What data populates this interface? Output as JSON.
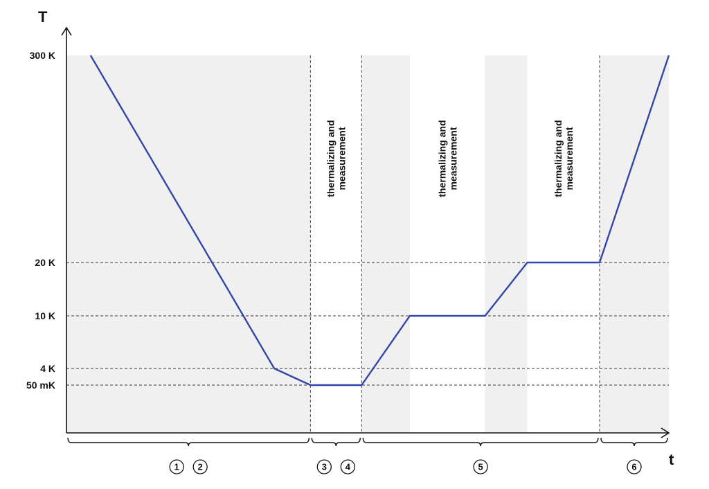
{
  "chart_data": {
    "type": "line",
    "title": "",
    "xlabel": "t",
    "ylabel": "T",
    "x_axis_ticks": [],
    "y_ticks": [
      "300 K",
      "20 K",
      "10 K",
      "4 K",
      "50 mK"
    ],
    "series": [
      {
        "color": "#3344aa",
        "points": [
          {
            "t": 0.04,
            "T": "300 K"
          },
          {
            "t": 0.345,
            "T": "4 K"
          },
          {
            "t": 0.405,
            "T": "50 mK"
          },
          {
            "t": 0.49,
            "T": "50 mK"
          },
          {
            "t": 0.57,
            "T": "10 K"
          },
          {
            "t": 0.695,
            "T": "10 K"
          },
          {
            "t": 0.765,
            "T": "20 K"
          },
          {
            "t": 0.885,
            "T": "20 K"
          },
          {
            "t": 1.0,
            "T": "300 K"
          }
        ]
      }
    ],
    "shaded_intervals": [
      [
        0.0,
        0.405
      ],
      [
        0.49,
        0.57
      ],
      [
        0.695,
        0.765
      ],
      [
        0.885,
        1.0
      ]
    ],
    "phase_boundaries": [
      0.405,
      0.49,
      0.885
    ],
    "grid": false,
    "dashed_reference_lines": [
      "20 K",
      "10 K",
      "4 K",
      "50 mK"
    ],
    "phase_labels": [
      {
        "line1": "thermalizing and",
        "line2": "measurement",
        "center": 0.4475
      },
      {
        "line1": "thermalizing and",
        "line2": "measurement",
        "center": 0.6325
      },
      {
        "line1": "thermalizing and",
        "line2": "measurement",
        "center": 0.825
      }
    ],
    "braces": [
      {
        "from": 0.0,
        "to": 0.405,
        "steps": [
          "1",
          "2"
        ]
      },
      {
        "from": 0.405,
        "to": 0.49,
        "steps": [
          "3",
          "4"
        ]
      },
      {
        "from": 0.49,
        "to": 0.885,
        "steps": [
          "5"
        ]
      },
      {
        "from": 0.885,
        "to": 1.0,
        "steps": [
          "6"
        ]
      }
    ],
    "colors": {
      "shade": "#f0f0f0",
      "line": "#3344aa",
      "axis": "#111111",
      "dash": "#333333"
    }
  }
}
